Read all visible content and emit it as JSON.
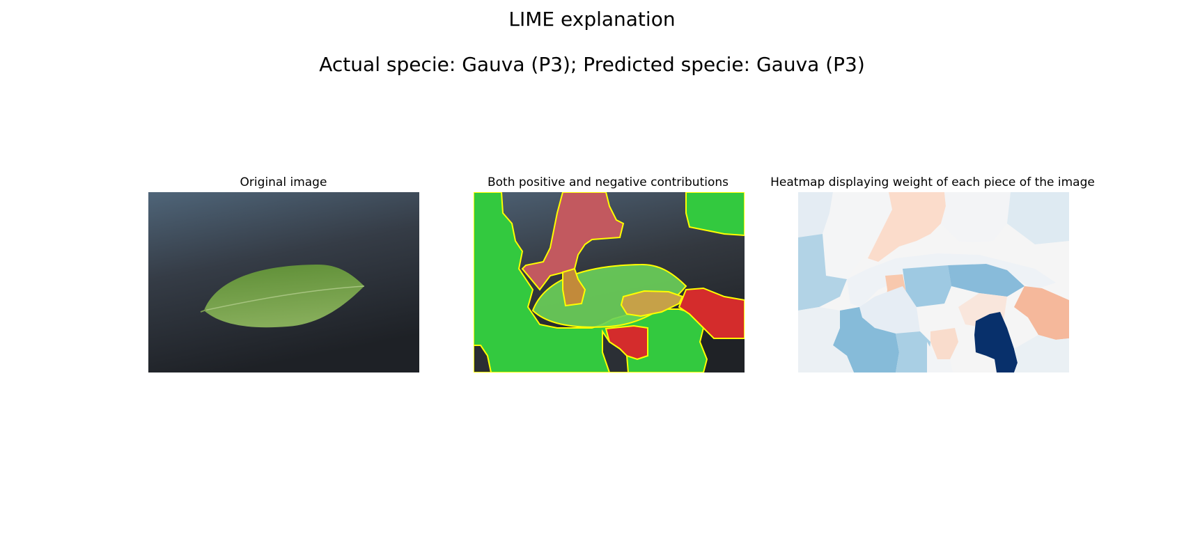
{
  "figure": {
    "title": "LIME explanation",
    "subtitle": "Actual specie: Gauva (P3); Predicted specie: Gauva (P3)"
  },
  "panels": [
    {
      "title": "Original image"
    },
    {
      "title": "Both positive and negative contributions"
    },
    {
      "title": "Heatmap displaying weight of each piece of the image"
    }
  ],
  "colors": {
    "background_dark": "#2f3540",
    "leaf_green": "#6a9a44",
    "positive_green": "#2ecc40",
    "negative_red": "#d32f2f",
    "boundary_yellow": "#ffff00",
    "heat_dark_blue": "#08306b",
    "heat_light_blue": "#9ecae1",
    "heat_light_orange": "#f4b498"
  }
}
